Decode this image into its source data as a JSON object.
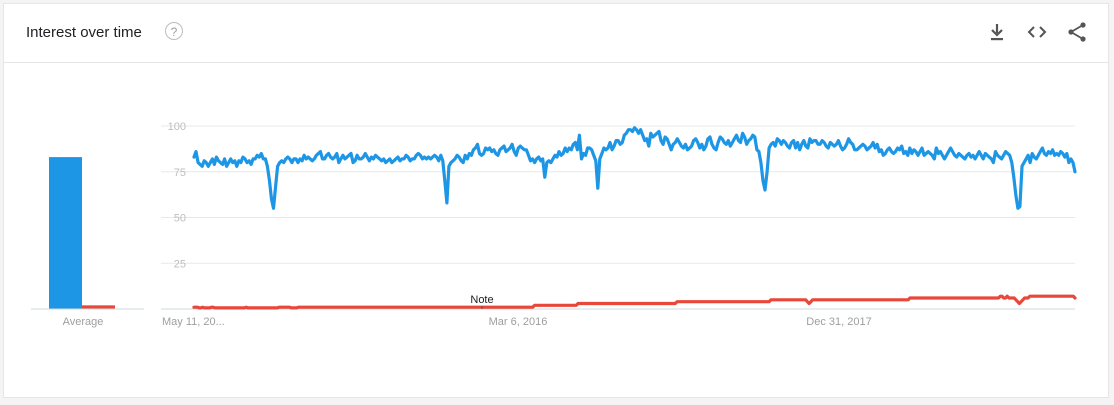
{
  "header": {
    "title": "Interest over time",
    "help_glyph": "?",
    "icons": [
      "download-icon",
      "embed-code-icon",
      "share-icon"
    ]
  },
  "chart_data": {
    "type": "line",
    "title": "Interest over time",
    "ylim": [
      0,
      100
    ],
    "yticks": [
      25,
      50,
      75,
      100
    ],
    "xtick_labels": [
      "May 11, 20...",
      "Mar 6, 2016",
      "Dec 31, 2017"
    ],
    "annotations": [
      "Note"
    ],
    "colors": {
      "series1": "#1e96e6",
      "series2": "#e8473a"
    },
    "average": {
      "label": "Average",
      "values": [
        83,
        2
      ]
    },
    "series": [
      {
        "color": "#1e96e6",
        "values": [
          83,
          86,
          80,
          79,
          78,
          81,
          80,
          78,
          80,
          82,
          79,
          83,
          81,
          80,
          79,
          82,
          78,
          80,
          82,
          80,
          81,
          78,
          81,
          80,
          83,
          82,
          80,
          81,
          79,
          82,
          82,
          84,
          83,
          85,
          82,
          82,
          78,
          70,
          60,
          55,
          67,
          78,
          80,
          81,
          80,
          82,
          83,
          82,
          80,
          82,
          82,
          80,
          82,
          81,
          84,
          82,
          83,
          82,
          81,
          82,
          84,
          85,
          86,
          82,
          82,
          84,
          85,
          83,
          82,
          83,
          85,
          80,
          82,
          84,
          82,
          83,
          84,
          85,
          80,
          81,
          84,
          82,
          82,
          83,
          85,
          83,
          81,
          83,
          82,
          84,
          83,
          82,
          81,
          82,
          80,
          81,
          82,
          80,
          81,
          82,
          83,
          81,
          82,
          82,
          84,
          83,
          81,
          82,
          82,
          84,
          85,
          84,
          82,
          83,
          82,
          83,
          82,
          83,
          84,
          83,
          81,
          84,
          81,
          70,
          58,
          78,
          80,
          81,
          82,
          84,
          83,
          81,
          80,
          84,
          82,
          85,
          84,
          87,
          88,
          90,
          85,
          84,
          85,
          88,
          87,
          88,
          86,
          87,
          85,
          84,
          87,
          88,
          89,
          86,
          87,
          88,
          90,
          86,
          84,
          88,
          89,
          88,
          87,
          87,
          84,
          81,
          82,
          80,
          82,
          83,
          81,
          82,
          72,
          80,
          81,
          80,
          82,
          84,
          83,
          86,
          84,
          85,
          88,
          86,
          88,
          87,
          90,
          91,
          87,
          95,
          82,
          85,
          84,
          88,
          88,
          87,
          84,
          81,
          66,
          82,
          85,
          88,
          87,
          88,
          91,
          87,
          89,
          92,
          92,
          90,
          91,
          95,
          96,
          98,
          98,
          97,
          99,
          98,
          96,
          98,
          95,
          92,
          93,
          89,
          96,
          94,
          95,
          96,
          97,
          92,
          90,
          94,
          93,
          90,
          87,
          90,
          91,
          93,
          91,
          89,
          88,
          90,
          87,
          88,
          89,
          92,
          93,
          91,
          88,
          90,
          87,
          89,
          93,
          94,
          90,
          88,
          87,
          91,
          94,
          93,
          91,
          90,
          92,
          89,
          91,
          93,
          95,
          92,
          91,
          96,
          94,
          90,
          92,
          93,
          95,
          94,
          87,
          86,
          80,
          70,
          65,
          75,
          88,
          90,
          91,
          89,
          93,
          92,
          90,
          92,
          91,
          89,
          88,
          91,
          92,
          88,
          91,
          87,
          90,
          92,
          89,
          88,
          93,
          91,
          92,
          92,
          90,
          90,
          92,
          91,
          89,
          88,
          91,
          90,
          89,
          90,
          92,
          89,
          87,
          88,
          90,
          93,
          91,
          90,
          87,
          87,
          88,
          89,
          90,
          89,
          87,
          88,
          89,
          91,
          88,
          90,
          86,
          87,
          84,
          85,
          87,
          88,
          86,
          85,
          86,
          88,
          87,
          89,
          85,
          86,
          84,
          88,
          85,
          87,
          86,
          84,
          86,
          88,
          84,
          85,
          86,
          85,
          84,
          82,
          88,
          85,
          86,
          84,
          82,
          84,
          86,
          88,
          86,
          84,
          83,
          85,
          84,
          83,
          82,
          84,
          85,
          83,
          84,
          82,
          84,
          86,
          84,
          82,
          85,
          84,
          83,
          82,
          80,
          86,
          84,
          83,
          82,
          84,
          86,
          85,
          84,
          80,
          72,
          62,
          55,
          56,
          78,
          80,
          82,
          84,
          80,
          85,
          83,
          82,
          84,
          86,
          88,
          85,
          84,
          86,
          85,
          87,
          84,
          85,
          84,
          86,
          85,
          83,
          85,
          80,
          82,
          80,
          75
        ]
      },
      {
        "color": "#e8473a",
        "values": [
          1,
          1,
          1,
          0.6,
          0.6,
          1,
          0.6,
          0.6,
          0.6,
          0.6,
          1,
          1,
          0.6,
          0.6,
          0.6,
          0.6,
          0.6,
          0.6,
          0.6,
          0.6,
          0.6,
          0.6,
          0.6,
          0.6,
          0.6,
          0.6,
          0.6,
          0.6,
          0.6,
          0.6,
          1,
          0.6,
          0.6,
          0.6,
          0.6,
          0.6,
          0.6,
          0.6,
          0.6,
          0.6,
          0.6,
          0.6,
          0.6,
          0.6,
          0.6,
          0.6,
          0.6,
          0.6,
          0.6,
          1,
          1,
          1,
          1,
          1,
          1,
          1,
          0.6,
          0.6,
          0.6,
          0.6,
          1,
          1,
          1,
          1,
          1,
          1,
          1,
          1,
          1,
          1,
          1,
          1,
          1,
          1,
          1,
          1,
          1,
          1,
          1,
          1,
          1,
          1,
          1,
          1,
          1,
          1,
          1,
          1,
          1,
          1,
          1,
          1,
          1,
          1,
          1,
          1,
          1,
          1,
          1,
          1,
          1,
          1,
          1,
          1,
          1,
          1,
          1,
          1,
          1,
          1,
          1,
          1,
          1,
          1,
          1,
          1,
          1,
          1,
          1,
          1,
          1,
          1,
          1,
          1,
          1,
          1,
          1,
          1,
          1,
          1,
          1,
          1,
          1,
          1,
          1,
          1,
          1,
          1,
          1,
          1,
          1,
          1,
          1,
          1,
          1,
          1,
          1,
          1,
          1,
          1,
          1,
          1,
          1,
          1,
          1,
          1,
          1,
          1,
          1,
          1,
          1,
          1,
          1,
          1,
          1,
          1,
          1,
          1,
          1,
          1,
          1,
          1,
          1,
          1,
          1,
          1,
          1,
          1,
          1,
          1,
          1,
          1,
          1,
          1,
          1,
          1,
          1,
          1,
          1,
          1,
          1,
          1,
          1,
          1,
          1,
          1,
          2,
          2,
          2,
          2,
          2,
          2,
          2,
          2,
          2,
          2,
          2,
          2,
          2,
          2,
          2,
          2,
          2,
          2,
          2,
          2,
          2,
          2,
          2,
          2,
          2,
          3,
          3,
          3,
          3,
          3,
          3,
          3,
          3,
          3,
          3,
          3,
          3,
          3,
          3,
          3,
          3,
          3,
          3,
          3,
          3,
          3,
          3,
          3,
          3,
          3,
          3,
          3,
          3,
          3,
          3,
          3,
          3,
          3,
          3,
          3,
          3,
          3,
          3,
          3,
          3,
          3,
          3,
          3,
          3,
          3,
          3,
          3,
          3,
          3,
          3,
          3,
          3,
          3,
          3,
          3,
          3,
          3,
          4,
          4,
          4,
          4,
          4,
          4,
          4,
          4,
          4,
          4,
          4,
          4,
          4,
          4,
          4,
          4,
          4,
          4,
          4,
          4,
          4,
          4,
          4,
          4,
          4,
          4,
          4,
          4,
          4,
          4,
          4,
          4,
          4,
          4,
          4,
          4,
          4,
          4,
          4,
          4,
          4,
          4,
          4,
          4,
          4,
          4,
          4,
          4,
          4,
          4,
          4,
          4,
          4,
          4,
          5,
          5,
          5,
          5,
          5,
          5,
          5,
          5,
          5,
          5,
          5,
          5,
          5,
          5,
          5,
          5,
          5,
          5,
          5,
          5,
          5,
          4,
          3,
          4,
          5,
          5,
          5,
          5,
          5,
          5,
          5,
          5,
          5,
          5,
          5,
          5,
          5,
          5,
          5,
          5,
          5,
          5,
          5,
          5,
          5,
          5,
          5,
          5,
          5,
          5,
          5,
          5,
          5,
          5,
          5,
          5,
          5,
          5,
          5,
          5,
          5,
          5,
          5,
          5,
          5,
          5,
          5,
          5,
          5,
          5,
          5,
          5,
          5,
          5,
          5,
          5,
          5,
          5,
          5,
          5,
          6,
          6,
          6,
          6,
          6,
          6,
          6,
          6,
          6,
          6,
          6,
          6,
          6,
          6,
          6,
          6,
          6,
          6,
          6,
          6,
          6,
          6,
          6,
          6,
          6,
          6,
          6,
          6,
          6,
          6,
          6,
          6,
          6,
          6,
          6,
          6,
          6,
          6,
          6,
          6,
          6,
          6,
          6,
          6,
          6,
          6,
          6,
          6,
          6,
          6,
          6,
          6,
          7,
          7,
          6,
          6,
          7,
          6,
          6,
          6,
          6,
          5,
          4,
          3,
          4,
          5,
          6,
          6,
          6,
          7,
          7,
          7,
          7,
          7,
          7,
          7,
          7,
          7,
          7,
          7,
          7,
          7,
          7,
          7,
          7,
          7,
          7,
          7,
          7,
          7,
          7,
          7,
          7,
          7,
          7,
          6
        ]
      }
    ]
  }
}
